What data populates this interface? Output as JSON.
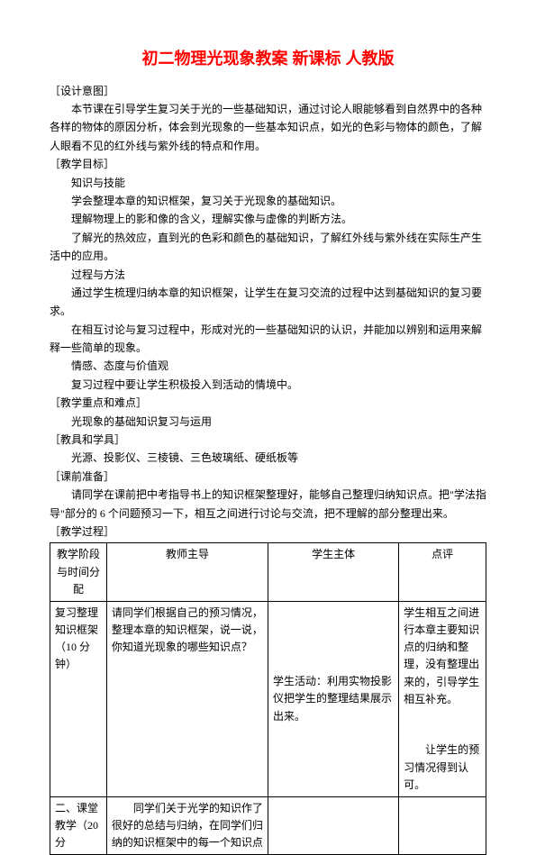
{
  "title": "初二物理光现象教案 新课标 人教版",
  "sections": {
    "design": {
      "label": "［设计意图］",
      "p1": "本节课在引导学生复习关于光的一些基础知识，通过讨论人眼能够看到自然界中的各种各样的物体的原因分析，体会到光现象的一些基本知识点，如光的色彩与物体的颜色，了解人眼看不见的红外线与紫外线的特点和作用。"
    },
    "goals": {
      "label": "［教学目标］",
      "sub1": "知识与技能",
      "p1": "学会整理本章的知识框架，复习关于光现象的基础知识。",
      "p2": "理解物理上的影和像的含义，理解实像与虚像的判断方法。",
      "p3": "了解光的热效应，直到光的色彩和颜色的基础知识，了解红外线与紫外线在实际生产生活中的应用。",
      "sub2": "过程与方法",
      "p4": "通过学生梳理归纳本章的知识框架，让学生在复习交流的过程中达到基础知识的复习要求。",
      "p5": "在相互讨论与复习过程中，形成对光的一些基础知识的认识，并能加以辨别和运用来解释一些简单的现象。",
      "sub3": "情感、态度与价值观",
      "p6": "复习过程中要让学生积极投入到活动的情境中。"
    },
    "focus": {
      "label": "［教学重点和难点］",
      "p1": "光现象的基础知识复习与运用"
    },
    "tools": {
      "label": "［教具和学具］",
      "p1": "光源、投影仪、三棱镜、三色玻璃纸、硬纸板等"
    },
    "prep": {
      "label": "［课前准备］",
      "p1": "请同学在课前把中考指导书上的知识框架整理好，能够自己整理归纳知识点。把\"学法指导\"部分的 6 个问题预习一下，相互之间进行讨论与交流，把不理解的部分整理出来。"
    },
    "process": {
      "label": "［教学过程］"
    }
  },
  "table": {
    "headers": {
      "c1": "教学阶段与时间分配",
      "c2": "教师主导",
      "c3": "学生主体",
      "c4": "点评"
    },
    "row1": {
      "c1": "复习整理知识框架（10 分钟）",
      "c2": "请同学们根据自己的预习情况，整理本章的知识框架，说一说，你知道光现象的哪些知识点？",
      "c3": "学生活动：利用实物投影仪把学生的整理结果展示出来。",
      "c4a": "学生相互之间进行本章主要知识点的归纳和整理，没有整理出来的，引导学生相互补充。",
      "c4b": "让学生的预习情况得到认可。"
    },
    "row2": {
      "c1": "二、课堂教学（20 分",
      "c2_indent": "同学们关于光学的知识作了",
      "c2_line2": "很好的总结与归纳，在同学们归",
      "c2_line3": "纳的知识框架中的每一个知识点"
    }
  }
}
